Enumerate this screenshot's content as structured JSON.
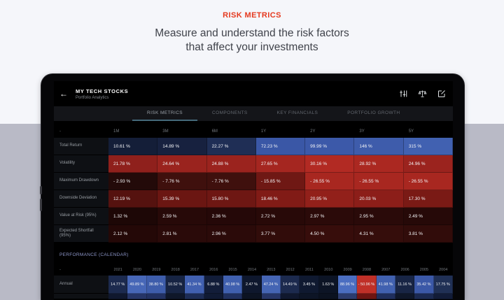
{
  "hero": {
    "kicker": "RISK METRICS",
    "headline_line1": "Measure and understand the risk factors",
    "headline_line2": "that affect your investments"
  },
  "colors": {
    "page_top_bg": "#f5f6fa",
    "page_bottom_bg": "#b9bac6",
    "accent_red": "#e5391e",
    "screen_bg": "#000000",
    "tabbar_bg": "#141519",
    "active_tab_underline": "#44697a",
    "label_cell_bg": "#0e1014"
  },
  "app": {
    "nav": {
      "back_icon": "back-arrow-icon",
      "title": "MY TECH STOCKS",
      "subtitle": "Portfolio Analytics",
      "action_icons": [
        "tune-sliders-icon",
        "balance-scale-icon",
        "compose-note-icon"
      ]
    },
    "tabs": [
      {
        "label": "RISK METRICS",
        "active": true
      },
      {
        "label": "COMPONENTS",
        "active": false
      },
      {
        "label": "KEY FINANCIALS",
        "active": false
      },
      {
        "label": "PORTFOLIO GROWTH",
        "active": false
      }
    ],
    "risk_table": {
      "columns": [
        "-",
        "1M",
        "3M",
        "6M",
        "1Y",
        "2Y",
        "3Y",
        "5Y"
      ],
      "rows": [
        {
          "label": "Total Return",
          "values": [
            "10.61 %",
            "14.89 %",
            "22.27 %",
            "72.23 %",
            "99.99 %",
            "146 %",
            "315 %"
          ],
          "colors": [
            "#141e38",
            "#17213f",
            "#1f2e55",
            "#3a57a6",
            "#3c59a9",
            "#3e5cab",
            "#4161b1"
          ]
        },
        {
          "label": "Volatility",
          "values": [
            "21.78 %",
            "24.64 %",
            "24.88 %",
            "27.65 %",
            "30.16 %",
            "28.92 %",
            "24.96 %"
          ],
          "colors": [
            "#8f201c",
            "#9a231e",
            "#9b231e",
            "#a52620",
            "#b22a23",
            "#ab2821",
            "#9b231e"
          ]
        },
        {
          "label": "Maximum Drawdown",
          "values": [
            "- 2.93 %",
            "- 7.76 %",
            "- 7.76 %",
            "- 15.85 %",
            "- 26.55 %",
            "- 26.55 %",
            "- 26.55 %"
          ],
          "colors": [
            "#230a09",
            "#3f100d",
            "#3f100d",
            "#6f1814",
            "#a82720",
            "#a82720",
            "#a82720"
          ]
        },
        {
          "label": "Downside Deviation",
          "values": [
            "12.19 %",
            "15.39 %",
            "15.80 %",
            "18.46 %",
            "20.95 %",
            "20.03 %",
            "17.30 %"
          ],
          "colors": [
            "#55120f",
            "#6b1612",
            "#6e1713",
            "#811b16",
            "#92201a",
            "#8c1e19",
            "#7a1a15"
          ]
        },
        {
          "label": "Value at Risk (95%)",
          "values": [
            "1.32 %",
            "2.59 %",
            "2.36 %",
            "2.72 %",
            "2.97 %",
            "2.95 %",
            "2.49 %"
          ],
          "colors": [
            "#1d0706",
            "#270908",
            "#250808",
            "#280908",
            "#2b0a09",
            "#2a0a09",
            "#260908"
          ]
        },
        {
          "label": "Expected Shortfall (95%)",
          "values": [
            "2.12 %",
            "2.81 %",
            "2.96 %",
            "3.77 %",
            "4.50 %",
            "4.31 %",
            "3.81 %"
          ],
          "colors": [
            "#240807",
            "#2a0a09",
            "#2b0a09",
            "#310c0a",
            "#370d0b",
            "#350d0b",
            "#310c0a"
          ]
        }
      ]
    },
    "performance": {
      "section_title": "PERFORMANCE (CALENDAR)",
      "columns": [
        "-",
        "2021",
        "2020",
        "2019",
        "2018",
        "2017",
        "2016",
        "2015",
        "2014",
        "2013",
        "2012",
        "2011",
        "2010",
        "2009",
        "2008",
        "2007",
        "2006",
        "2005",
        "2004"
      ],
      "rows": [
        {
          "label": "Annual",
          "values": [
            "14.77 %",
            "49.89 %",
            "38.80 %",
            "10.52 %",
            "41.34 %",
            "6.88 %",
            "40.98 %",
            "2.47 %",
            "47.24 %",
            "14.49 %",
            "3.45 %",
            "1.63 %",
            "88.96 %",
            "- 50.96 %",
            "41.98 %",
            "11.16 %",
            "35.42 %",
            "17.75 %"
          ],
          "colors": [
            "#1c2a4e",
            "#4767b7",
            "#3e5dab",
            "#172443",
            "#4160b0",
            "#121d39",
            "#4060af",
            "#0e172d",
            "#4565b4",
            "#1c2a4e",
            "#0f1930",
            "#0c1425",
            "#4b6ec1",
            "#c03028",
            "#4161b0",
            "#182545",
            "#3b58a7",
            "#203055"
          ]
        }
      ],
      "cutoff_row_colors": [
        "#10182e",
        "#263567",
        "#223162",
        "#0f1729",
        "#1d2c55",
        "#101a33",
        "#20305f",
        "#0c1322",
        "#263567",
        "#10182e",
        "#0d1526",
        "#0b1220",
        "#2c3c6e",
        "#6e1512",
        "#1f2e5c",
        "#0f1729",
        "#1b2951",
        "#121c38"
      ]
    }
  }
}
